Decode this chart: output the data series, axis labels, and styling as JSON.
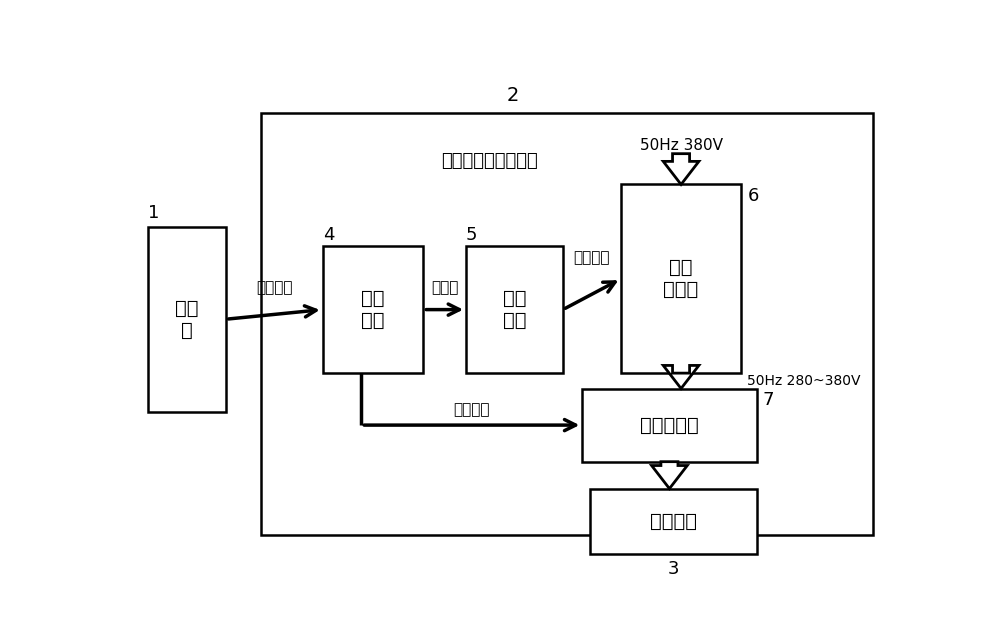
{
  "bg": "#ffffff",
  "num2": "2",
  "num1": "1",
  "num3": "3",
  "num4": "4",
  "num5": "5",
  "num6": "6",
  "num7": "7",
  "label_bianfu": "变幅电子调压调速器",
  "label_50hz_top": "50Hz 380V",
  "label_50hz_mid": "50Hz 280~380V",
  "box1_label": "联动\n台",
  "box4_label": "信号\n识别",
  "box5_label": "调压\n触发",
  "box6_label": "三相\n晶闸管",
  "box7_label": "方向接触器",
  "box3_label": "变幅电机",
  "arrow_dang": "档位信号",
  "arrow_tiao": "调压值",
  "arrow_chu": "触发信号",
  "arrow_fang": "方向信号"
}
